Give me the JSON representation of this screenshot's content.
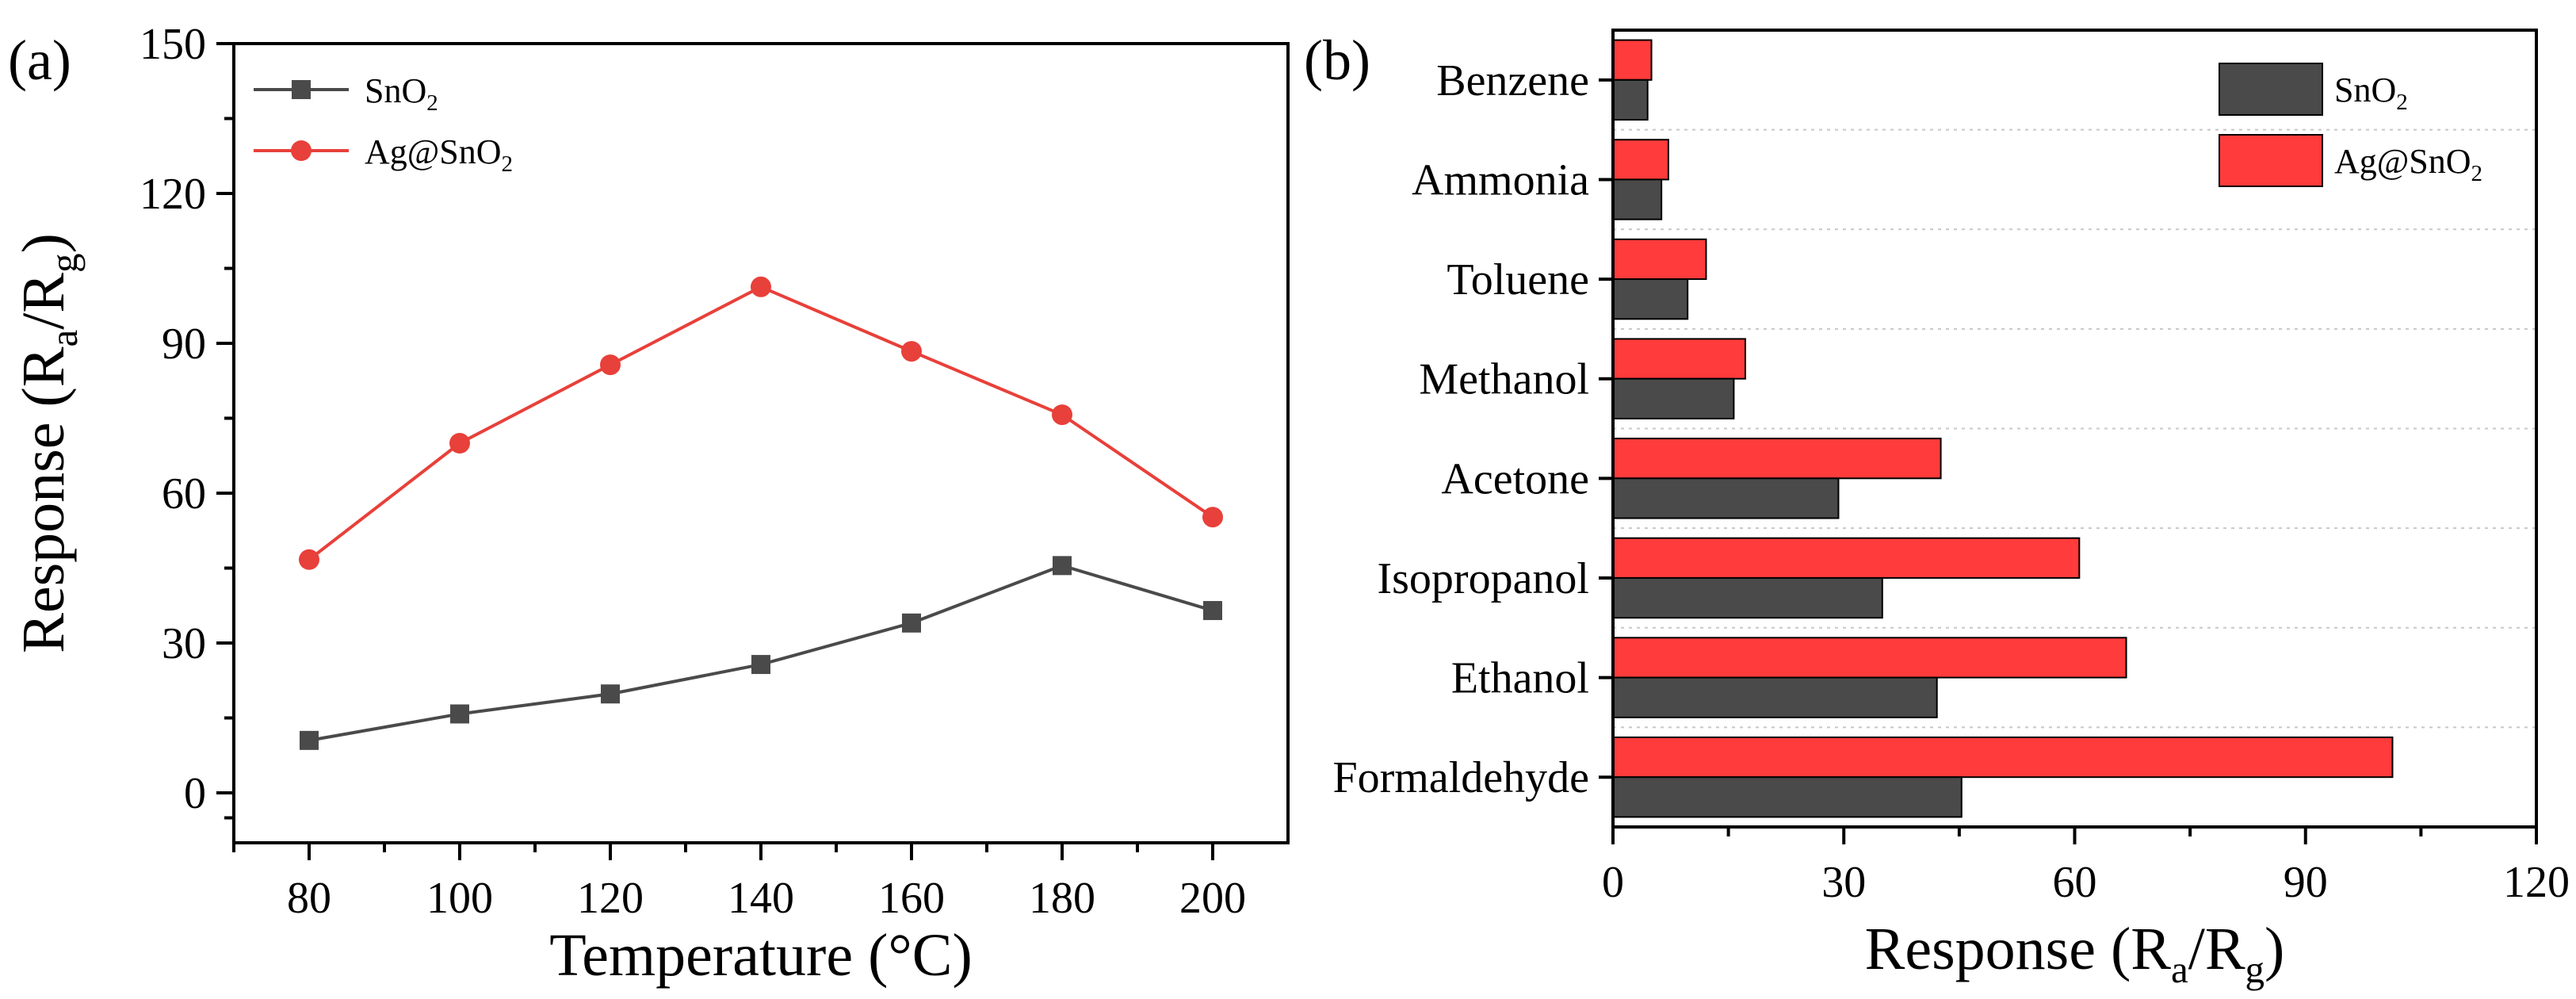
{
  "colors": {
    "sno2": "#4a4a4a",
    "ag": "#ff3b3b",
    "ag_line": "#e8403a"
  },
  "chart_data": [
    {
      "type": "line",
      "panel_label": "(a)",
      "xlabel": "Temperature (°C)",
      "ylabel": "Response (Ra/Rg)",
      "x": [
        80,
        100,
        120,
        140,
        160,
        180,
        200
      ],
      "xticks": [
        80,
        100,
        120,
        140,
        160,
        180,
        200
      ],
      "yticks": [
        0,
        30,
        60,
        90,
        120,
        150
      ],
      "xlim": [
        70,
        210
      ],
      "ylim": [
        -10,
        150
      ],
      "legend_position": "top-left",
      "series": [
        {
          "name": "SnO2",
          "marker": "square",
          "values": [
            10.5,
            15.8,
            19.8,
            25.7,
            34.0,
            45.5,
            36.5
          ]
        },
        {
          "name": "Ag@SnO2",
          "marker": "circle",
          "values": [
            46.7,
            70.0,
            85.7,
            101.3,
            88.4,
            75.7,
            55.2
          ]
        }
      ]
    },
    {
      "type": "bar",
      "orientation": "horizontal",
      "panel_label": "(b)",
      "xlabel": "Response (Ra/Rg)",
      "xticks": [
        0,
        30,
        60,
        90,
        120
      ],
      "xlim": [
        0,
        120
      ],
      "legend_position": "top-right",
      "categories": [
        "Benzene",
        "Ammonia",
        "Toluene",
        "Methanol",
        "Acetone",
        "Isopropanol",
        "Ethanol",
        "Formaldehyde"
      ],
      "series": [
        {
          "name": "SnO2",
          "values": [
            4.5,
            6.3,
            9.7,
            15.7,
            29.3,
            35.0,
            42.1,
            45.3
          ]
        },
        {
          "name": "Ag@SnO2",
          "values": [
            5.0,
            7.2,
            12.1,
            17.2,
            42.6,
            60.6,
            66.7,
            101.3
          ]
        }
      ]
    }
  ]
}
